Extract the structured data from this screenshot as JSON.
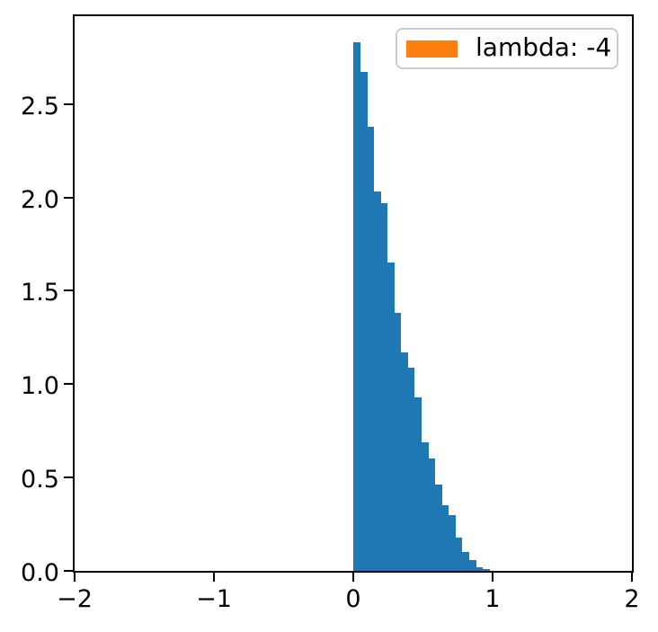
{
  "chart_data": {
    "type": "bar",
    "subtype": "histogram",
    "title": "",
    "xlabel": "",
    "ylabel": "",
    "bar_color": "#1f77b4",
    "axis_color": "#000000",
    "background_color": "#ffffff",
    "grid": false,
    "legend_position": "upper-right",
    "legend": [
      {
        "label": "lambda: -4",
        "color": "#ff7f0e"
      }
    ],
    "xlim": [
      -2,
      2
    ],
    "ylim": [
      0,
      2.97
    ],
    "bins": {
      "start": 0,
      "width": 0.04875,
      "count": 20,
      "end": 0.975
    },
    "values": [
      2.83,
      2.67,
      2.38,
      2.03,
      1.97,
      1.65,
      1.38,
      1.17,
      1.09,
      0.93,
      0.69,
      0.6,
      0.46,
      0.35,
      0.3,
      0.18,
      0.1,
      0.06,
      0.02,
      0.01
    ],
    "x_ticks": [
      {
        "value": -2,
        "label": "−2"
      },
      {
        "value": -1,
        "label": "−1"
      },
      {
        "value": 0,
        "label": "0"
      },
      {
        "value": 1,
        "label": "1"
      },
      {
        "value": 2,
        "label": "2"
      }
    ],
    "y_ticks": [
      {
        "value": 0.0,
        "label": "0.0"
      },
      {
        "value": 0.5,
        "label": "0.5"
      },
      {
        "value": 1.0,
        "label": "1.0"
      },
      {
        "value": 1.5,
        "label": "1.5"
      },
      {
        "value": 2.0,
        "label": "2.0"
      },
      {
        "value": 2.5,
        "label": "2.5"
      }
    ]
  }
}
